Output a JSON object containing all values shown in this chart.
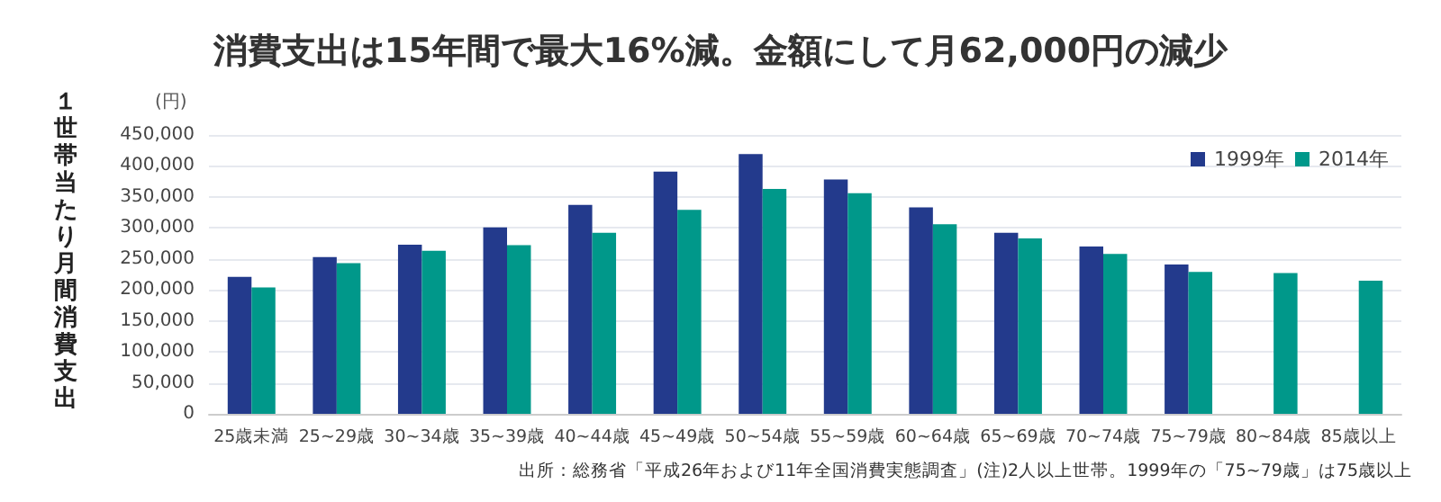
{
  "chart_data": {
    "type": "bar",
    "title": "消費支出は15年間で最大16%減。金額にして月62,000円の減少",
    "ylabel": "１世帯当たり月間消費支出",
    "annotations": [
      "(円)",
      "出所：総務省「平成26年および11年全国消費実態調査」(注)2人以上世帯。1999年の「75~79歳」は75歳以上"
    ],
    "categories": [
      "25歳未満",
      "25~29歳",
      "30~34歳",
      "35~39歳",
      "40~44歳",
      "45~49歳",
      "50~54歳",
      "55~59歳",
      "60~64歳",
      "65~69歳",
      "70~74歳",
      "75~79歳",
      "80~84歳",
      "85歳以上"
    ],
    "series": [
      {
        "name": "1999年",
        "color": "#233a8c",
        "values": [
          221000,
          253000,
          273000,
          301000,
          337000,
          391000,
          419000,
          378000,
          333000,
          292000,
          270000,
          241000,
          null,
          null
        ]
      },
      {
        "name": "2014年",
        "color": "#00988a",
        "values": [
          204000,
          243000,
          263000,
          272000,
          292000,
          329000,
          363000,
          356000,
          306000,
          283000,
          258000,
          229000,
          227000,
          215000
        ]
      }
    ],
    "ylim": [
      0,
      450000
    ],
    "yticks": [
      0,
      {
        "value": 50000,
        "label": "50,000"
      },
      {
        "value": 100000,
        "label": "100,000"
      },
      {
        "value": 150000,
        "label": "150,000"
      },
      {
        "value": 200000,
        "label": "200,000"
      },
      {
        "value": 250000,
        "label": "250,000"
      },
      {
        "value": 300000,
        "label": "300,000"
      },
      {
        "value": 350000,
        "label": "350,000"
      },
      {
        "value": 400000,
        "label": "400,000"
      },
      {
        "value": 450000,
        "label": "450,000"
      }
    ],
    "grid": "y",
    "legend": "top right"
  }
}
